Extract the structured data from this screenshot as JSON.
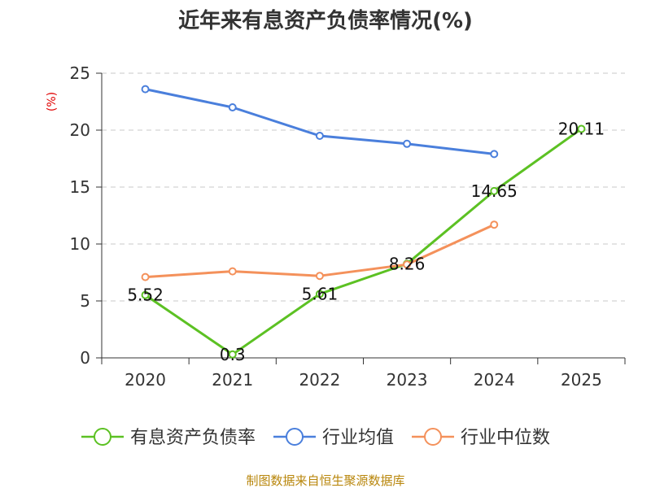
{
  "chart_data": {
    "type": "line",
    "title": "近年来有息资产负债率情况(%)",
    "unit_label": "(%)",
    "categories": [
      "2020",
      "2021",
      "2022",
      "2023",
      "2024",
      "2025"
    ],
    "ylim": [
      0,
      25
    ],
    "yticks": [
      0,
      5,
      10,
      15,
      20,
      25
    ],
    "grid": true,
    "legend_position": "bottom",
    "series": [
      {
        "name": "有息资产负债率",
        "color": "#5cc123",
        "values": [
          5.52,
          0.3,
          5.61,
          8.26,
          14.65,
          20.11
        ],
        "labels": [
          "5.52",
          "0.3",
          "5.61",
          "8.26",
          "14.65",
          "20.11"
        ]
      },
      {
        "name": "行业均值",
        "color": "#4a7fdc",
        "values": [
          23.6,
          22.0,
          19.5,
          18.8,
          17.9,
          null
        ]
      },
      {
        "name": "行业中位数",
        "color": "#f4915b",
        "values": [
          7.1,
          7.6,
          7.2,
          8.2,
          11.7,
          null
        ]
      }
    ],
    "source": "制图数据来自恒生聚源数据库"
  }
}
